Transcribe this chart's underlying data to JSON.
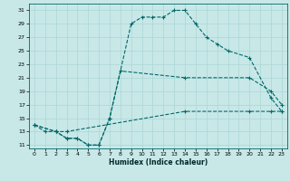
{
  "xlabel": "Humidex (Indice chaleur)",
  "bg_color": "#c8e8e8",
  "grid_color": "#b0d8d8",
  "line_color": "#006868",
  "xlim": [
    -0.5,
    23.5
  ],
  "ylim": [
    10.5,
    32
  ],
  "xticks": [
    0,
    1,
    2,
    3,
    4,
    5,
    6,
    7,
    8,
    9,
    10,
    11,
    12,
    13,
    14,
    15,
    16,
    17,
    18,
    19,
    20,
    21,
    22,
    23
  ],
  "yticks": [
    11,
    13,
    15,
    17,
    19,
    21,
    23,
    25,
    27,
    29,
    31
  ],
  "line1_x": [
    0,
    1,
    2,
    3,
    4,
    5,
    6,
    7,
    9,
    10,
    11,
    12,
    13,
    14,
    15,
    16,
    17,
    18,
    20,
    22,
    23
  ],
  "line1_y": [
    14,
    13,
    13,
    12,
    12,
    11,
    11,
    15,
    29,
    30,
    30,
    30,
    31,
    31,
    29,
    27,
    26,
    25,
    24,
    18,
    16
  ],
  "line2_x": [
    0,
    2,
    3,
    4,
    5,
    6,
    7,
    8,
    14,
    20,
    22,
    23
  ],
  "line2_y": [
    14,
    13,
    12,
    12,
    11,
    11,
    15,
    22,
    21,
    21,
    19,
    17
  ],
  "line3_x": [
    0,
    2,
    3,
    14,
    20,
    22,
    23
  ],
  "line3_y": [
    14,
    13,
    13,
    16,
    16,
    16,
    16
  ]
}
